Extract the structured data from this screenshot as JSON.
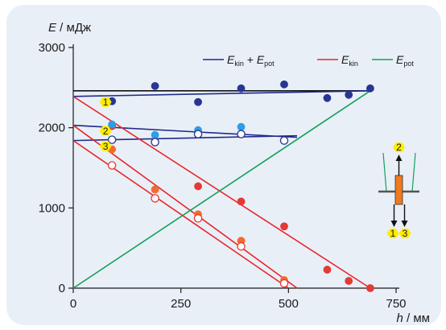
{
  "chart_data": {
    "type": "scatter",
    "ylabel": {
      "symbol": "E",
      "unit": " / мДж"
    },
    "xlabel": {
      "symbol": "h",
      "unit": " / мм"
    },
    "xlim": [
      0,
      750
    ],
    "ylim": [
      0,
      3000
    ],
    "xticks": [
      0,
      250,
      500,
      750
    ],
    "yticks": [
      0,
      1000,
      2000,
      3000
    ],
    "grid": false,
    "legend_position": "top-right",
    "legend": [
      {
        "main": "E",
        "sub": "kin",
        "mid": " + ",
        "main2": "E",
        "sub2": "pot",
        "color": "#1f2a8a"
      },
      {
        "main": "E",
        "sub": "kin",
        "color": "#e8262a"
      },
      {
        "main": "E",
        "sub": "pot",
        "color": "#12a05a"
      }
    ],
    "lines": [
      {
        "role": "reference-total",
        "color": "#111111",
        "points": [
          [
            0,
            2460
          ],
          [
            690,
            2460
          ]
        ]
      },
      {
        "role": "total-1",
        "color": "#1f2a8a",
        "points": [
          [
            0,
            2390
          ],
          [
            690,
            2460
          ]
        ]
      },
      {
        "role": "total-2",
        "color": "#1f2a8a",
        "points": [
          [
            0,
            2030
          ],
          [
            520,
            1880
          ]
        ]
      },
      {
        "role": "total-3",
        "color": "#1f2a8a",
        "points": [
          [
            0,
            1840
          ],
          [
            520,
            1900
          ]
        ]
      },
      {
        "role": "kin-1",
        "color": "#e8262a",
        "points": [
          [
            0,
            2390
          ],
          [
            690,
            0
          ]
        ]
      },
      {
        "role": "kin-2",
        "color": "#e8262a",
        "points": [
          [
            0,
            2030
          ],
          [
            520,
            0
          ]
        ]
      },
      {
        "role": "kin-3",
        "color": "#e8262a",
        "points": [
          [
            0,
            1840
          ],
          [
            500,
            0
          ]
        ]
      },
      {
        "role": "pot",
        "color": "#12a05a",
        "points": [
          [
            0,
            0
          ],
          [
            690,
            2460
          ]
        ]
      }
    ],
    "series": [
      {
        "set": "1",
        "kind": "total",
        "style": "filled",
        "color": "#283593",
        "points": [
          [
            90,
            2330
          ],
          [
            190,
            2520
          ],
          [
            290,
            2320
          ],
          [
            390,
            2490
          ],
          [
            490,
            2540
          ],
          [
            590,
            2370
          ],
          [
            640,
            2410
          ],
          [
            690,
            2490
          ]
        ]
      },
      {
        "set": "1",
        "kind": "kin",
        "style": "filled",
        "color": "#e53935",
        "points": [
          [
            90,
            2020
          ],
          [
            190,
            1830
          ],
          [
            290,
            1270
          ],
          [
            390,
            1080
          ],
          [
            490,
            770
          ],
          [
            590,
            230
          ],
          [
            640,
            90
          ],
          [
            690,
            0
          ]
        ]
      },
      {
        "set": "2",
        "kind": "total",
        "style": "filled",
        "color": "#2a9fe6",
        "points": [
          [
            90,
            2040
          ],
          [
            190,
            1910
          ],
          [
            290,
            1970
          ],
          [
            390,
            2010
          ]
        ]
      },
      {
        "set": "2",
        "kind": "kin",
        "style": "filled",
        "color": "#f36b2a",
        "points": [
          [
            90,
            1730
          ],
          [
            190,
            1230
          ],
          [
            290,
            920
          ],
          [
            390,
            590
          ],
          [
            490,
            100
          ]
        ]
      },
      {
        "set": "3",
        "kind": "total",
        "style": "open",
        "color": "#283593",
        "points": [
          [
            90,
            1850
          ],
          [
            190,
            1820
          ],
          [
            290,
            1920
          ],
          [
            390,
            1920
          ],
          [
            490,
            1840
          ]
        ]
      },
      {
        "set": "3",
        "kind": "kin",
        "style": "open",
        "color": "#e53935",
        "points": [
          [
            90,
            1530
          ],
          [
            190,
            1120
          ],
          [
            290,
            870
          ],
          [
            390,
            520
          ],
          [
            490,
            60
          ]
        ]
      }
    ],
    "curve_labels": [
      {
        "text": "1",
        "x": 75,
        "y": 2320
      },
      {
        "text": "2",
        "x": 75,
        "y": 1960
      },
      {
        "text": "3",
        "x": 75,
        "y": 1770
      }
    ],
    "inset": {
      "labels": [
        {
          "text": "2"
        },
        {
          "text": "1"
        },
        {
          "text": "3"
        }
      ]
    }
  }
}
